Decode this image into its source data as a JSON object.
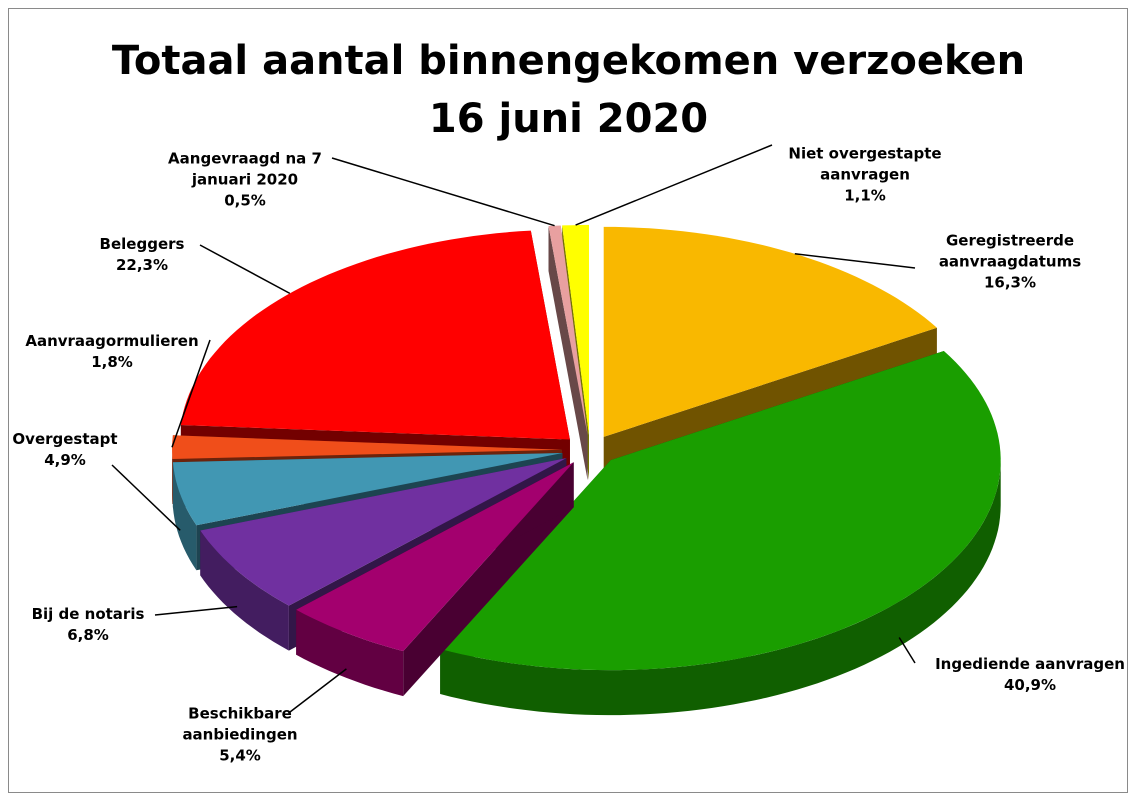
{
  "chart_data": {
    "type": "pie",
    "title": "Totaal aantal binnengekomen verzoeken",
    "subtitle": "16 juni 2020",
    "categories": [
      "Geregistreerde aanvraagdatums",
      "Ingediende aanvragen",
      "Beschikbare aanbiedingen",
      "Bij de notaris",
      "Overgestapt",
      "Aanvraagormulieren",
      "Beleggers",
      "Aangevraagd na 7 januari 2020",
      "Niet overgestapte aanvragen"
    ],
    "values": [
      16.3,
      40.9,
      5.4,
      6.8,
      4.9,
      1.8,
      22.3,
      0.5,
      1.1
    ],
    "value_labels": [
      "16,3%",
      "40,9%",
      "5,4%",
      "6,8%",
      "4,9%",
      "1,8%",
      "22,3%",
      "0,5%",
      "1,1%"
    ],
    "colors": [
      "#f9b800",
      "#1a9e00",
      "#a3006e",
      "#7030a0",
      "#4197b3",
      "#f04e1a",
      "#ff0000",
      "#e8a0a0",
      "#ffff00"
    ]
  }
}
